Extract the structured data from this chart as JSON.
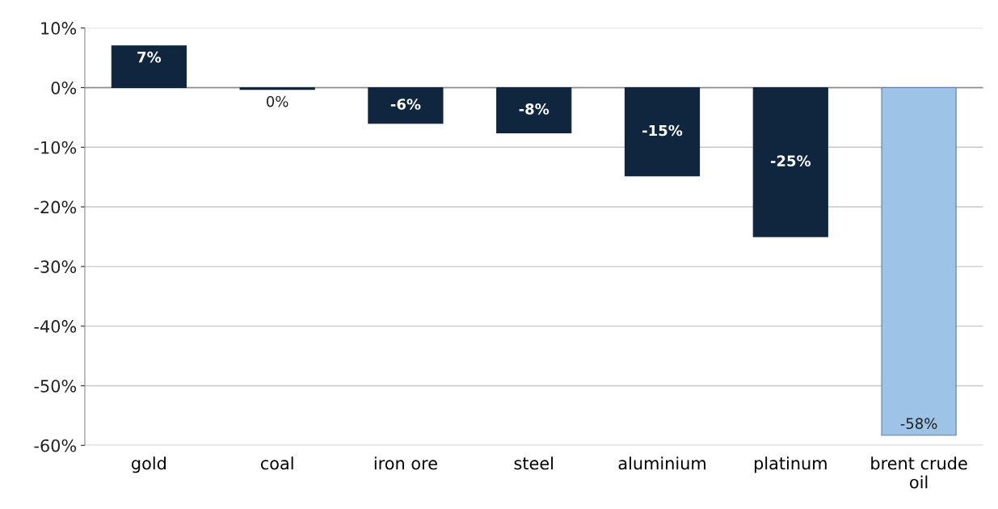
{
  "chart_data": {
    "type": "bar",
    "categories": [
      "gold",
      "coal",
      "iron ore",
      "steel",
      "aluminium",
      "platinum",
      "brent crude\noil"
    ],
    "values": [
      7,
      -0.3,
      -6,
      -7.6,
      -14.8,
      -25,
      -58.3
    ],
    "value_labels": [
      "7%",
      "0%",
      "-6%",
      "-8%",
      "-15%",
      "-25%",
      "-58%"
    ],
    "colors": [
      "#10263f",
      "#10263f",
      "#10263f",
      "#10263f",
      "#10263f",
      "#10263f",
      "#9dc3e6"
    ],
    "ylim": [
      -60,
      10
    ],
    "yticks": [
      {
        "value": -60,
        "label": "-60%"
      },
      {
        "value": -50,
        "label": "-50%"
      },
      {
        "value": -40,
        "label": "-40%"
      },
      {
        "value": -30,
        "label": "-30%"
      },
      {
        "value": -20,
        "label": "-20%"
      },
      {
        "value": -10,
        "label": "-10%"
      },
      {
        "value": 0,
        "label": "0%"
      },
      {
        "value": 10,
        "label": "10%"
      }
    ],
    "grid": "y",
    "legend": false
  }
}
